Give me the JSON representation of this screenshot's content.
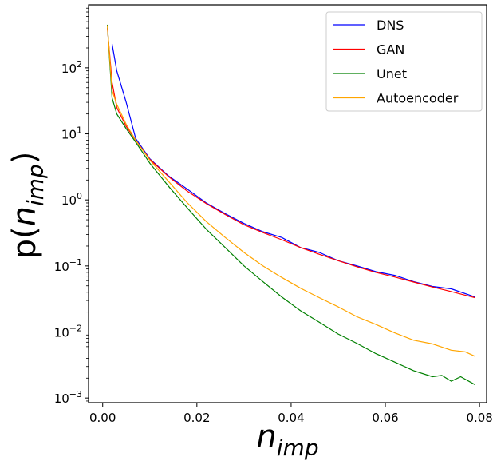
{
  "chart_data": {
    "type": "line",
    "xlabel": "n",
    "xlabel_sub": "imp",
    "ylabel_prefix": "p(",
    "ylabel_main": "n",
    "ylabel_sub": "imp",
    "ylabel_suffix": ")",
    "xlim": [
      -0.003,
      0.0815
    ],
    "ylim": [
      0.00085,
      900
    ],
    "yscale": "log",
    "xticks": [
      0.0,
      0.02,
      0.04,
      0.06,
      0.08
    ],
    "xtick_labels": [
      "0.00",
      "0.02",
      "0.04",
      "0.06",
      "0.08"
    ],
    "yticks": [
      0.001,
      0.01,
      0.1,
      1,
      10,
      100
    ],
    "ytick_labels": [
      {
        "base": "10",
        "exp": "−3"
      },
      {
        "base": "10",
        "exp": "−2"
      },
      {
        "base": "10",
        "exp": "−1"
      },
      {
        "base": "10",
        "exp": "0"
      },
      {
        "base": "10",
        "exp": "1"
      },
      {
        "base": "10",
        "exp": "2"
      }
    ],
    "grid": false,
    "legend_position": "top-right",
    "series": [
      {
        "name": "DNS",
        "color": "#0000ff",
        "x": [
          0.002,
          0.003,
          0.005,
          0.007,
          0.01,
          0.014,
          0.018,
          0.022,
          0.026,
          0.03,
          0.034,
          0.038,
          0.042,
          0.046,
          0.05,
          0.054,
          0.058,
          0.062,
          0.066,
          0.07,
          0.074,
          0.079
        ],
        "y": [
          230,
          90,
          30,
          8.5,
          4.2,
          2.3,
          1.45,
          0.9,
          0.62,
          0.44,
          0.33,
          0.27,
          0.19,
          0.16,
          0.12,
          0.1,
          0.082,
          0.072,
          0.058,
          0.049,
          0.045,
          0.034
        ]
      },
      {
        "name": "GAN",
        "color": "#ff0000",
        "x": [
          0.001,
          0.002,
          0.003,
          0.005,
          0.007,
          0.01,
          0.014,
          0.018,
          0.022,
          0.026,
          0.03,
          0.034,
          0.038,
          0.042,
          0.046,
          0.05,
          0.054,
          0.058,
          0.062,
          0.066,
          0.07,
          0.074,
          0.079
        ],
        "y": [
          400,
          60,
          25,
          13,
          8,
          4.1,
          2.25,
          1.35,
          0.88,
          0.6,
          0.42,
          0.32,
          0.25,
          0.19,
          0.15,
          0.12,
          0.097,
          0.08,
          0.068,
          0.057,
          0.048,
          0.041,
          0.033
        ]
      },
      {
        "name": "Unet",
        "color": "#008000",
        "x": [
          0.001,
          0.002,
          0.003,
          0.005,
          0.007,
          0.01,
          0.014,
          0.018,
          0.022,
          0.026,
          0.03,
          0.034,
          0.038,
          0.042,
          0.046,
          0.05,
          0.054,
          0.058,
          0.062,
          0.066,
          0.07,
          0.072,
          0.074,
          0.076,
          0.079
        ],
        "y": [
          450,
          35,
          20,
          12,
          7.5,
          3.6,
          1.6,
          0.75,
          0.36,
          0.19,
          0.1,
          0.058,
          0.034,
          0.021,
          0.014,
          0.0093,
          0.0067,
          0.0047,
          0.0035,
          0.0026,
          0.0021,
          0.0022,
          0.0018,
          0.0021,
          0.0016
        ]
      },
      {
        "name": "Autoencoder",
        "color": "#ffa500",
        "x": [
          0.001,
          0.002,
          0.003,
          0.005,
          0.007,
          0.01,
          0.014,
          0.018,
          0.022,
          0.026,
          0.03,
          0.034,
          0.038,
          0.042,
          0.046,
          0.05,
          0.054,
          0.058,
          0.062,
          0.066,
          0.07,
          0.074,
          0.077,
          0.079
        ],
        "y": [
          440,
          45,
          28,
          14,
          8,
          4.0,
          1.9,
          0.9,
          0.47,
          0.27,
          0.16,
          0.1,
          0.067,
          0.046,
          0.033,
          0.024,
          0.017,
          0.013,
          0.0097,
          0.0075,
          0.0066,
          0.0053,
          0.005,
          0.0043
        ]
      }
    ]
  }
}
